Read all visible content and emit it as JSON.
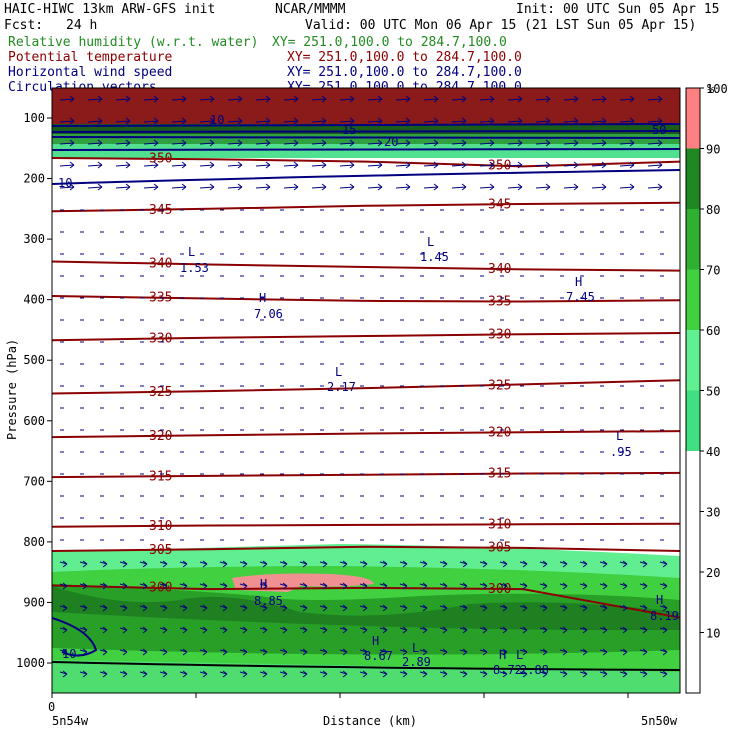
{
  "header": {
    "model": "HAIC-HIWC 13km ARW-GFS init",
    "org": "NCAR/MMMM",
    "init": "Init: 00 UTC Sun 05 Apr 15",
    "fcst_label": "Fcst:",
    "fcst_value": "24 h",
    "valid": "Valid: 00 UTC Mon 06 Apr 15 (21 LST Sun 05 Apr 15)"
  },
  "fields": [
    {
      "label": "Relative humidity (w.r.t. water)",
      "xy": "XY= 251.0,100.0 to 284.7,100.0",
      "color": "#228b22"
    },
    {
      "label": "Potential temperature",
      "xy": "XY= 251.0,100.0 to 284.7,100.0",
      "color": "#8b0000"
    },
    {
      "label": "Horizontal wind speed",
      "xy": "XY= 251.0,100.0 to 284.7,100.0",
      "color": "#000080"
    },
    {
      "label": "Circulation vectors",
      "xy": "XY= 251.0,100.0 to 284.7,100.0",
      "color": "#000080"
    }
  ],
  "chart_data": {
    "type": "heatmap",
    "ylabel": "Pressure (hPa)",
    "xlabel": "Distance (km)",
    "x_tick_zero": "0",
    "x_left_label": "5n54w",
    "x_right_label": "5n50w",
    "y_ticks": [
      100,
      200,
      300,
      400,
      500,
      600,
      700,
      800,
      900,
      1000
    ],
    "colorbar_unit": "%",
    "colorbar_ticks": [
      10,
      20,
      30,
      40,
      50,
      60,
      70,
      80,
      90,
      100
    ],
    "colorbar_colors": [
      "#ffffff",
      "#ffffff",
      "#ffffff",
      "#ffffff",
      "#40e080",
      "#60f090",
      "#40d040",
      "#30b030",
      "#208820",
      "#ff8080"
    ],
    "theta_contours": [
      {
        "label": "305",
        "p": [
          815,
          812,
          808,
          810,
          815
        ]
      },
      {
        "label": "310",
        "p": [
          775,
          773,
          772,
          771,
          770
        ]
      },
      {
        "label": "315",
        "p": [
          693,
          691,
          689,
          687,
          686
        ]
      },
      {
        "label": "320",
        "p": [
          627,
          624,
          621,
          619,
          617
        ]
      },
      {
        "label": "325",
        "p": [
          555,
          551,
          546,
          540,
          533
        ]
      },
      {
        "label": "330",
        "p": [
          467,
          463,
          460,
          457,
          455
        ]
      },
      {
        "label": "335",
        "p": [
          394,
          398,
          402,
          403,
          401
        ]
      },
      {
        "label": "340",
        "p": [
          337,
          342,
          346,
          350,
          352
        ]
      },
      {
        "label": "345",
        "p": [
          254,
          250,
          245,
          242,
          240
        ]
      },
      {
        "label": "350",
        "p": [
          166,
          168,
          172,
          180,
          172
        ]
      },
      {
        "label": "300",
        "p": [
          872,
          878,
          876,
          878,
          925
        ]
      }
    ],
    "wind_labels": [
      "10",
      "15",
      "20",
      "10",
      "50",
      "10"
    ],
    "extrema": [
      {
        "kind": "L",
        "value": "1.53"
      },
      {
        "kind": "L",
        "value": "1.45"
      },
      {
        "kind": "H",
        "value": "7.06"
      },
      {
        "kind": "H",
        "value": "7.45"
      },
      {
        "kind": "L",
        "value": "2.17"
      },
      {
        "kind": "L",
        "value": ".95"
      },
      {
        "kind": "H",
        "value": "8.85"
      },
      {
        "kind": "H",
        "value": "8.67"
      },
      {
        "kind": "L",
        "value": "2.89"
      },
      {
        "kind": "H",
        "value": "8.72"
      },
      {
        "kind": "L",
        "value": "2.88"
      },
      {
        "kind": "H",
        "value": "8.19"
      }
    ]
  }
}
